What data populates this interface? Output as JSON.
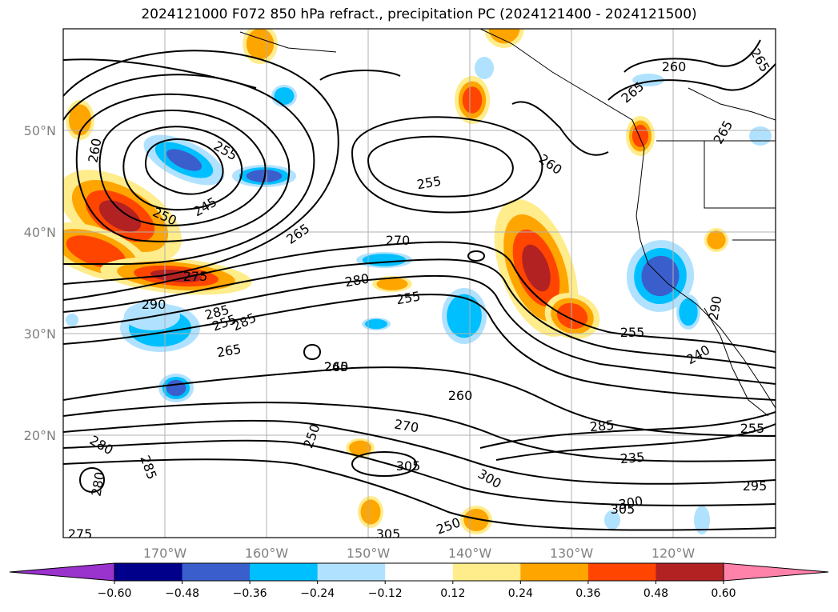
{
  "chart_data": {
    "type": "heatmap",
    "title": "2024121000 F072 850 hPa refract., precipitation PC (2024121400 - 2024121500)",
    "lon_ticks": [
      "170°W",
      "160°W",
      "150°W",
      "140°W",
      "130°W",
      "120°W"
    ],
    "lat_ticks": [
      "50°N",
      "40°N",
      "30°N",
      "20°N"
    ],
    "grid": true,
    "colorbar": {
      "orientation": "horizontal",
      "extend": "both",
      "bounds": [
        -0.72,
        -0.6,
        -0.48,
        -0.36,
        -0.24,
        -0.12,
        0.12,
        0.24,
        0.36,
        0.48,
        0.6,
        0.72
      ],
      "tick_labels": [
        "−0.60",
        "−0.48",
        "−0.36",
        "−0.24",
        "−0.12",
        "0.12",
        "0.24",
        "0.36",
        "0.48",
        "0.60"
      ],
      "colors": [
        "#9a32cd",
        "#00008b",
        "#3a5fcd",
        "#00bfff",
        "#b0e2ff",
        "#ffffff",
        "#ffec8b",
        "#ffa500",
        "#ff4500",
        "#b22222",
        "#ff82ab"
      ]
    },
    "contour_labels": [
      "260",
      "265",
      "260",
      "265",
      "265",
      "255",
      "255",
      "245",
      "250",
      "255",
      "260",
      "260",
      "265",
      "270",
      "275",
      "280",
      "285",
      "290",
      "285",
      "265",
      "255",
      "255",
      "245",
      "260",
      "270",
      "285",
      "240",
      "235",
      "255",
      "250",
      "300",
      "305",
      "305",
      "300",
      "295",
      "280",
      "285",
      "280",
      "290",
      "275",
      "305",
      "250"
    ]
  }
}
